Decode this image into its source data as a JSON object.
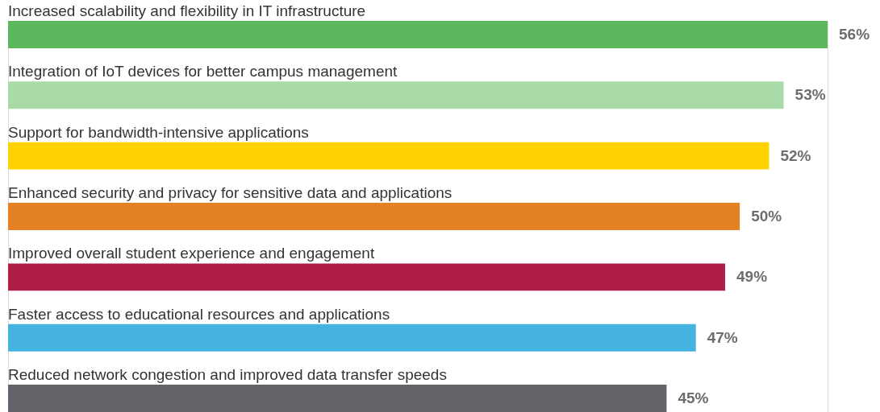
{
  "chart_data": {
    "type": "bar",
    "orientation": "horizontal",
    "categories": [
      "Increased scalability and flexibility in IT infrastructure",
      "Integration of IoT devices for better campus management",
      "Support for bandwidth-intensive applications",
      "Enhanced security and privacy for sensitive data and applications",
      "Improved overall student experience and engagement",
      "Faster access to educational resources and applications",
      "Reduced network congestion and improved data transfer speeds"
    ],
    "values": [
      56,
      53,
      52,
      50,
      49,
      47,
      45
    ],
    "colors": [
      "#5cb85c",
      "#a8dba8",
      "#ffd200",
      "#e58125",
      "#ae1e45",
      "#45b3e0",
      "#636369"
    ],
    "value_labels": [
      "56%",
      "53%",
      "52%",
      "50%",
      "49%",
      "47%",
      "45%"
    ]
  }
}
